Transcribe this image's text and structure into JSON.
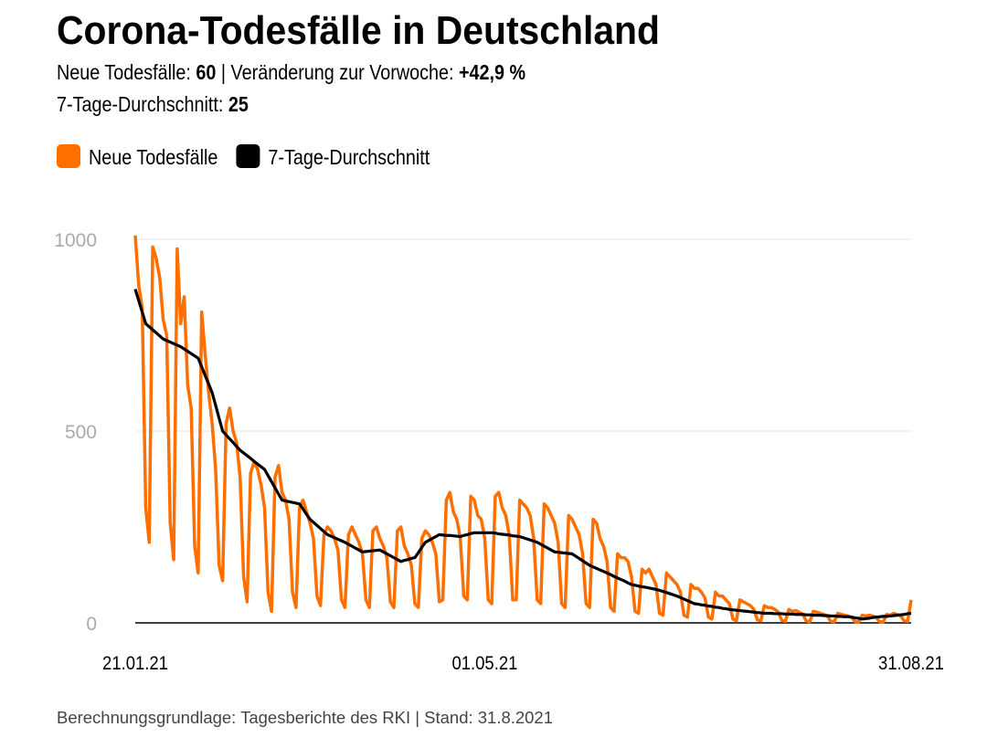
{
  "chart_data": {
    "type": "line",
    "title": "Corona-Todesfälle in Deutschland",
    "stats": [
      {
        "label": "Neue Todesfälle:",
        "value": 60
      },
      {
        "label": "| Veränderung zur Vorwoche:",
        "value": "+42,9 %"
      },
      {
        "label": "7-Tage-Durchschnitt:",
        "value": 25
      }
    ],
    "source": "Berechnungsgrundlage: Tagesberichte des RKI | Stand: 31.8.2021",
    "x": [
      0,
      1,
      2,
      3,
      4,
      5,
      6,
      7,
      8,
      9,
      10,
      11,
      12,
      13,
      14,
      15,
      16,
      17,
      18,
      19,
      20,
      21,
      22,
      23,
      24,
      25,
      26,
      27,
      28,
      29,
      30,
      31,
      32,
      33,
      34,
      35,
      36,
      37,
      38,
      39,
      40,
      41,
      42,
      43,
      44,
      45,
      46,
      47,
      48,
      49,
      50,
      51,
      52,
      53,
      54,
      55,
      56,
      57,
      58,
      59,
      60,
      61,
      62,
      63,
      64,
      65,
      66,
      67,
      68,
      69,
      70,
      71,
      72,
      73,
      74,
      75,
      76,
      77,
      78,
      79,
      80,
      81,
      82,
      83,
      84,
      85,
      86,
      87,
      88,
      89,
      90,
      91,
      92,
      93,
      94,
      95,
      96,
      97,
      98,
      99,
      100,
      101,
      102,
      103,
      104,
      105,
      106,
      107,
      108,
      109,
      110,
      111,
      112,
      113,
      114,
      115,
      116,
      117,
      118,
      119,
      120,
      121,
      122,
      123,
      124,
      125,
      126,
      127,
      128,
      129,
      130,
      131,
      132,
      133,
      134,
      135,
      136,
      137,
      138,
      139,
      140,
      141,
      142,
      143,
      144,
      145,
      146,
      147,
      148,
      149,
      150,
      151,
      152,
      153,
      154,
      155,
      156,
      157,
      158,
      159,
      160,
      161,
      162,
      163,
      164,
      165,
      166,
      167,
      168,
      169,
      170,
      171,
      172,
      173,
      174,
      175,
      176,
      177,
      178,
      179,
      180,
      181,
      182,
      183,
      184,
      185,
      186,
      187,
      188,
      189,
      190,
      191,
      192,
      193,
      194,
      195,
      196,
      197,
      198,
      199,
      200,
      201,
      202,
      203,
      204,
      205,
      206,
      207,
      208,
      209,
      210,
      211,
      212,
      213,
      214,
      215,
      216,
      217,
      218,
      219,
      220,
      221,
      222
    ],
    "xlim": [
      0,
      222
    ],
    "xticks": [
      {
        "value": 0,
        "label": "21.01.21"
      },
      {
        "value": 100,
        "label": "01.05.21"
      },
      {
        "value": 222,
        "label": "31.08.21"
      }
    ],
    "ylim": [
      0,
      1000
    ],
    "yticks": [
      0,
      500,
      1000
    ],
    "grid": true,
    "series": [
      {
        "name": "Neue Todesfälle",
        "color": "#ff6f00",
        "values": [
          1010,
          880,
          820,
          300,
          210,
          980,
          950,
          900,
          790,
          750,
          260,
          165,
          975,
          780,
          850,
          620,
          560,
          200,
          130,
          810,
          700,
          600,
          520,
          400,
          150,
          110,
          520,
          560,
          500,
          470,
          380,
          120,
          55,
          390,
          420,
          400,
          360,
          300,
          80,
          30,
          380,
          410,
          340,
          320,
          270,
          80,
          40,
          300,
          320,
          290,
          260,
          220,
          70,
          45,
          230,
          250,
          240,
          220,
          190,
          60,
          40,
          230,
          250,
          230,
          210,
          180,
          60,
          40,
          240,
          250,
          220,
          200,
          170,
          55,
          40,
          240,
          250,
          200,
          180,
          150,
          50,
          40,
          220,
          240,
          230,
          210,
          180,
          55,
          60,
          320,
          340,
          290,
          270,
          220,
          70,
          60,
          330,
          320,
          280,
          270,
          220,
          60,
          50,
          330,
          340,
          300,
          280,
          230,
          60,
          60,
          320,
          310,
          300,
          280,
          220,
          60,
          50,
          310,
          300,
          280,
          260,
          210,
          50,
          40,
          280,
          270,
          250,
          230,
          180,
          50,
          40,
          270,
          260,
          220,
          200,
          160,
          40,
          30,
          180,
          170,
          170,
          160,
          120,
          30,
          25,
          140,
          130,
          140,
          120,
          100,
          25,
          20,
          130,
          120,
          110,
          100,
          80,
          20,
          15,
          100,
          90,
          90,
          80,
          65,
          15,
          10,
          80,
          70,
          70,
          60,
          50,
          10,
          5,
          60,
          55,
          50,
          45,
          35,
          8,
          5,
          45,
          40,
          40,
          35,
          28,
          6,
          4,
          35,
          30,
          32,
          28,
          22,
          5,
          3,
          30,
          28,
          25,
          22,
          18,
          4,
          3,
          25,
          22,
          20,
          18,
          14,
          3,
          2,
          20,
          18,
          20,
          18,
          14,
          3,
          2,
          22,
          20,
          25,
          22,
          18,
          5,
          4,
          60
        ]
      },
      {
        "name": "7-Tage-Durchschnitt",
        "color": "#000000",
        "values": [
          870,
          840,
          810,
          780,
          772,
          764,
          756,
          748,
          740,
          736,
          732,
          728,
          724,
          720,
          714,
          708,
          702,
          696,
          690,
          668,
          645,
          623,
          600,
          567,
          533,
          500,
          490,
          480,
          470,
          460,
          450,
          443,
          436,
          429,
          421,
          414,
          407,
          400,
          384,
          368,
          352,
          336,
          320,
          318,
          316,
          314,
          312,
          310,
          297,
          283,
          270,
          262,
          254,
          246,
          238,
          230,
          226,
          222,
          218,
          214,
          210,
          205,
          200,
          195,
          190,
          185,
          186,
          187,
          188,
          189,
          190,
          185,
          180,
          175,
          170,
          165,
          160,
          163,
          165,
          168,
          170,
          183,
          197,
          210,
          215,
          220,
          225,
          230,
          229,
          228,
          228,
          227,
          226,
          225,
          228,
          230,
          233,
          235,
          235,
          235,
          235,
          235,
          235,
          234,
          232,
          231,
          230,
          229,
          227,
          226,
          225,
          222,
          219,
          216,
          213,
          210,
          205,
          200,
          195,
          190,
          185,
          184,
          183,
          182,
          181,
          180,
          174,
          168,
          162,
          156,
          150,
          146,
          142,
          138,
          134,
          130,
          126,
          121,
          117,
          113,
          109,
          104,
          100,
          98,
          96,
          94,
          93,
          91,
          89,
          87,
          85,
          82,
          79,
          76,
          73,
          70,
          66,
          62,
          58,
          54,
          50,
          49,
          47,
          46,
          44,
          43,
          41,
          40,
          38,
          37,
          35,
          34,
          33,
          32,
          31,
          30,
          29,
          28,
          27,
          26,
          25,
          25,
          25,
          24,
          24,
          24,
          23,
          23,
          23,
          22,
          22,
          22,
          21,
          21,
          20,
          20,
          20,
          19,
          19,
          18,
          18,
          17,
          17,
          16,
          16,
          15,
          13,
          12,
          10,
          11,
          12,
          14,
          15,
          16,
          17,
          17,
          18,
          19,
          20,
          21,
          22,
          24,
          25
        ]
      }
    ]
  }
}
